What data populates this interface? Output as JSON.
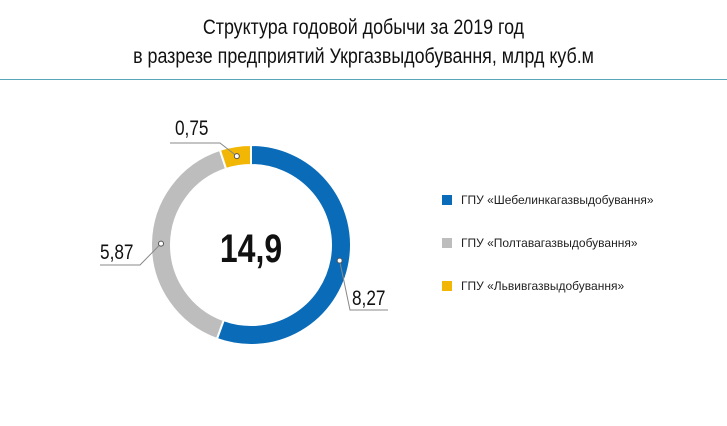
{
  "chart_data": {
    "type": "pie",
    "variant": "donut",
    "title": [
      "Структура годовой добычи за 2019 год",
      "в разрезе предприятий Укргазвыдобування, млрд куб.м"
    ],
    "total_label": "14,9",
    "legend_position": "right",
    "series": [
      {
        "name": "ГПУ «Шебелинкагазвыдобування»",
        "value": 8.27,
        "label": "8,27",
        "color": "#0a6cb8"
      },
      {
        "name": "ГПУ «Полтавагазвыдобування»",
        "value": 5.87,
        "label": "5,87",
        "color": "#bdbdbd"
      },
      {
        "name": "ГПУ «Львивгазвыдобування»",
        "value": 0.75,
        "label": "0,75",
        "color": "#f2b705"
      }
    ]
  }
}
